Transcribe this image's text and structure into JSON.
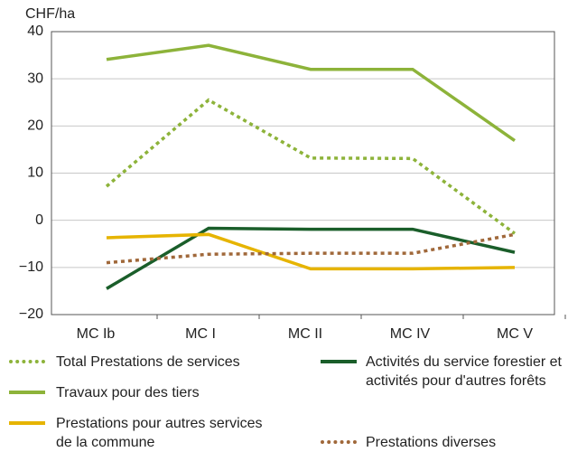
{
  "chart_data": {
    "type": "line",
    "y_label": "CHF/ha",
    "categories": [
      "MC Ib",
      "MC I",
      "MC II",
      "MC IV",
      "MC V"
    ],
    "ylim": [
      -20,
      40
    ],
    "yticks": [
      {
        "value": -20,
        "label": "−20"
      },
      {
        "value": -10,
        "label": "−10"
      },
      0,
      10,
      20,
      30,
      40
    ],
    "grid": true,
    "series": [
      {
        "name": "Total Prestations de services",
        "color": "#8db33a",
        "dash": "dotted",
        "values": [
          7.2,
          25.5,
          13.2,
          13.1,
          -2.8
        ]
      },
      {
        "name": "Activités du service forestier et activités pour d'autres forêts",
        "color": "#1a5e2a",
        "dash": "solid",
        "values": [
          -14.5,
          -1.7,
          -1.9,
          -1.9,
          -6.8
        ]
      },
      {
        "name": "Travaux pour des tiers",
        "color": "#8db33a",
        "dash": "solid",
        "values": [
          34.1,
          37.1,
          32.0,
          32.0,
          16.9
        ]
      },
      {
        "name": "Prestations pour autres services de la commune",
        "color": "#e6b400",
        "dash": "solid",
        "values": [
          -3.7,
          -3.0,
          -10.3,
          -10.3,
          -10.0
        ]
      },
      {
        "name": "Prestations diverses",
        "color": "#a0683a",
        "dash": "dotted",
        "values": [
          -9.0,
          -7.2,
          -7.0,
          -7.0,
          -3.0
        ]
      }
    ]
  }
}
